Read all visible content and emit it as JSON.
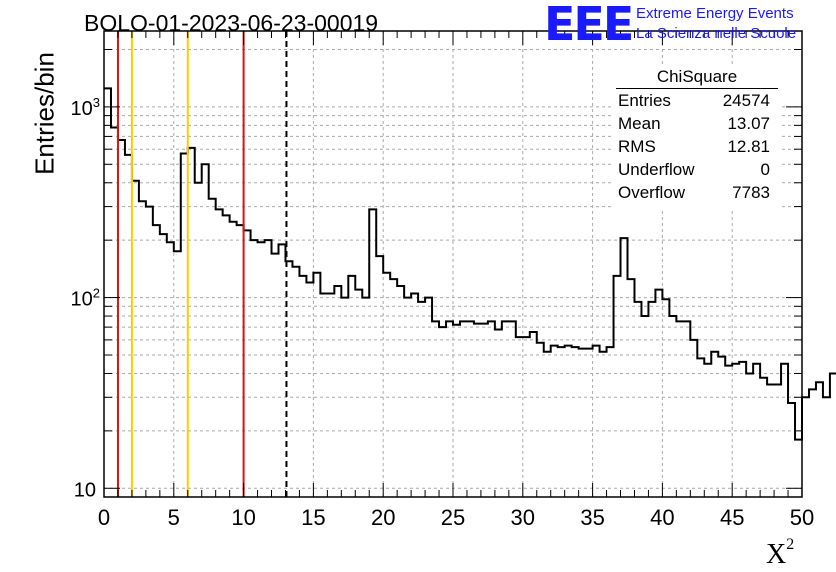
{
  "chart_data": {
    "type": "bar",
    "title": "BOLO-01-2023-06-23-00019",
    "xlabel": "X",
    "xlabel_sup": "2",
    "ylabel": "Entries/bin",
    "xlim": [
      0,
      50
    ],
    "ylim": [
      9,
      2500
    ],
    "y_scale": "log",
    "grid": true,
    "bin_width": 0.5,
    "x_ticks": [
      "0",
      "5",
      "10",
      "15",
      "20",
      "25",
      "30",
      "35",
      "40",
      "45",
      "50"
    ],
    "y_ticks": [
      {
        "base": "10",
        "exp": ""
      },
      {
        "base": "10",
        "exp": "2"
      },
      {
        "base": "10",
        "exp": "3"
      }
    ],
    "values": [
      1250,
      780,
      670,
      560,
      410,
      320,
      300,
      240,
      215,
      195,
      175,
      570,
      610,
      400,
      500,
      330,
      290,
      270,
      250,
      240,
      225,
      200,
      195,
      200,
      170,
      190,
      155,
      145,
      130,
      120,
      135,
      105,
      105,
      115,
      100,
      130,
      110,
      100,
      290,
      165,
      135,
      125,
      115,
      100,
      105,
      95,
      100,
      75,
      70,
      75,
      72,
      75,
      75,
      73,
      73,
      75,
      68,
      75,
      75,
      62,
      62,
      66,
      58,
      52,
      56,
      55,
      56,
      55,
      54,
      54,
      56,
      52,
      55,
      130,
      205,
      125,
      95,
      80,
      95,
      110,
      98,
      80,
      75,
      75,
      60,
      48,
      45,
      52,
      49,
      44,
      45,
      46,
      40,
      45,
      38,
      35,
      35,
      45,
      28,
      18,
      30,
      33,
      36,
      30,
      40
    ],
    "vertical_lines": [
      {
        "x": 1,
        "color": "#dd1111",
        "style": "solid"
      },
      {
        "x": 2,
        "color": "#ffcc00",
        "style": "solid"
      },
      {
        "x": 6,
        "color": "#ffcc00",
        "style": "solid"
      },
      {
        "x": 10,
        "color": "#dd1111",
        "style": "solid"
      },
      {
        "x": 13.07,
        "color": "#000000",
        "style": "dashed"
      }
    ],
    "stats_box": {
      "title": "ChiSquare",
      "rows": [
        {
          "label": "Entries",
          "value": "24574"
        },
        {
          "label": "Mean",
          "value": "13.07"
        },
        {
          "label": "RMS",
          "value": "12.81"
        },
        {
          "label": "Underflow",
          "value": "0"
        },
        {
          "label": "Overflow",
          "value": "7783"
        }
      ]
    }
  },
  "logo": {
    "mark": "EEE",
    "line1": "Extreme Energy Events",
    "line2": "La Scienza nelle Scuole",
    "color": "#1a1aff"
  }
}
